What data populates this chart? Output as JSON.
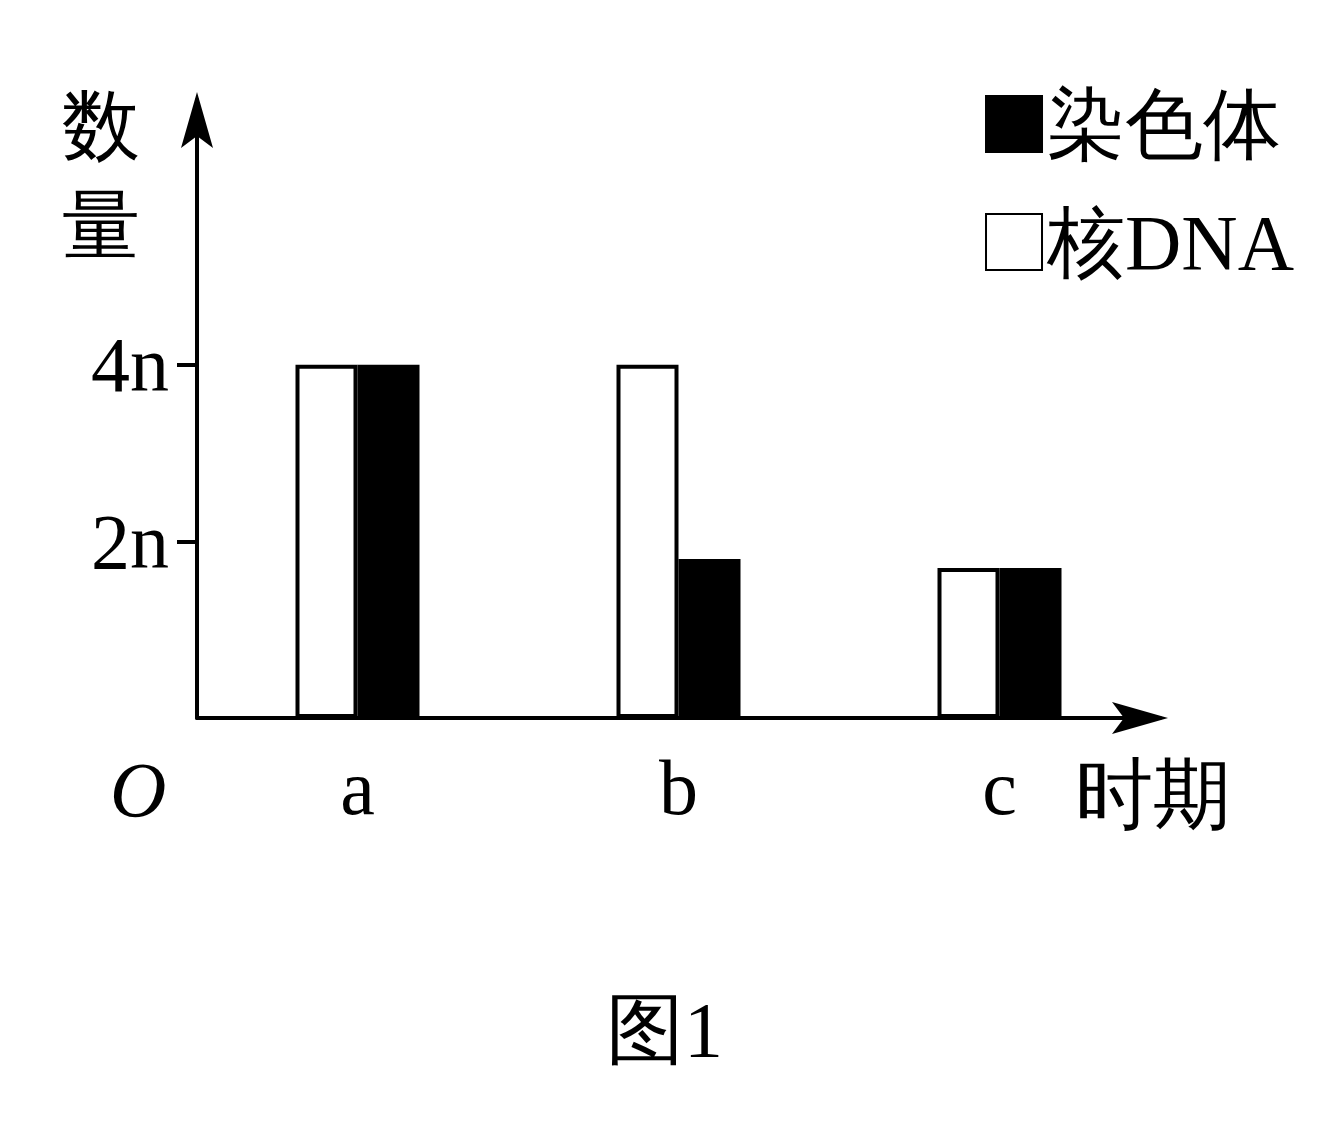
{
  "chart_data": {
    "type": "bar",
    "xlabel": "时期",
    "ylabel": "数量",
    "categories": [
      "a",
      "b",
      "c"
    ],
    "series": [
      {
        "name": "核DNA",
        "color": "#ffffff",
        "values": [
          4,
          4,
          1.7
        ]
      },
      {
        "name": "染色体",
        "color": "#000000",
        "values": [
          4,
          1.8,
          1.7
        ]
      }
    ],
    "ylim": [
      0,
      7
    ],
    "yticks": [
      {
        "value": 2,
        "label": "2n"
      },
      {
        "value": 4,
        "label": "4n"
      }
    ],
    "grid": false,
    "legend": "top right",
    "annotations": [
      "O",
      "图1"
    ]
  }
}
